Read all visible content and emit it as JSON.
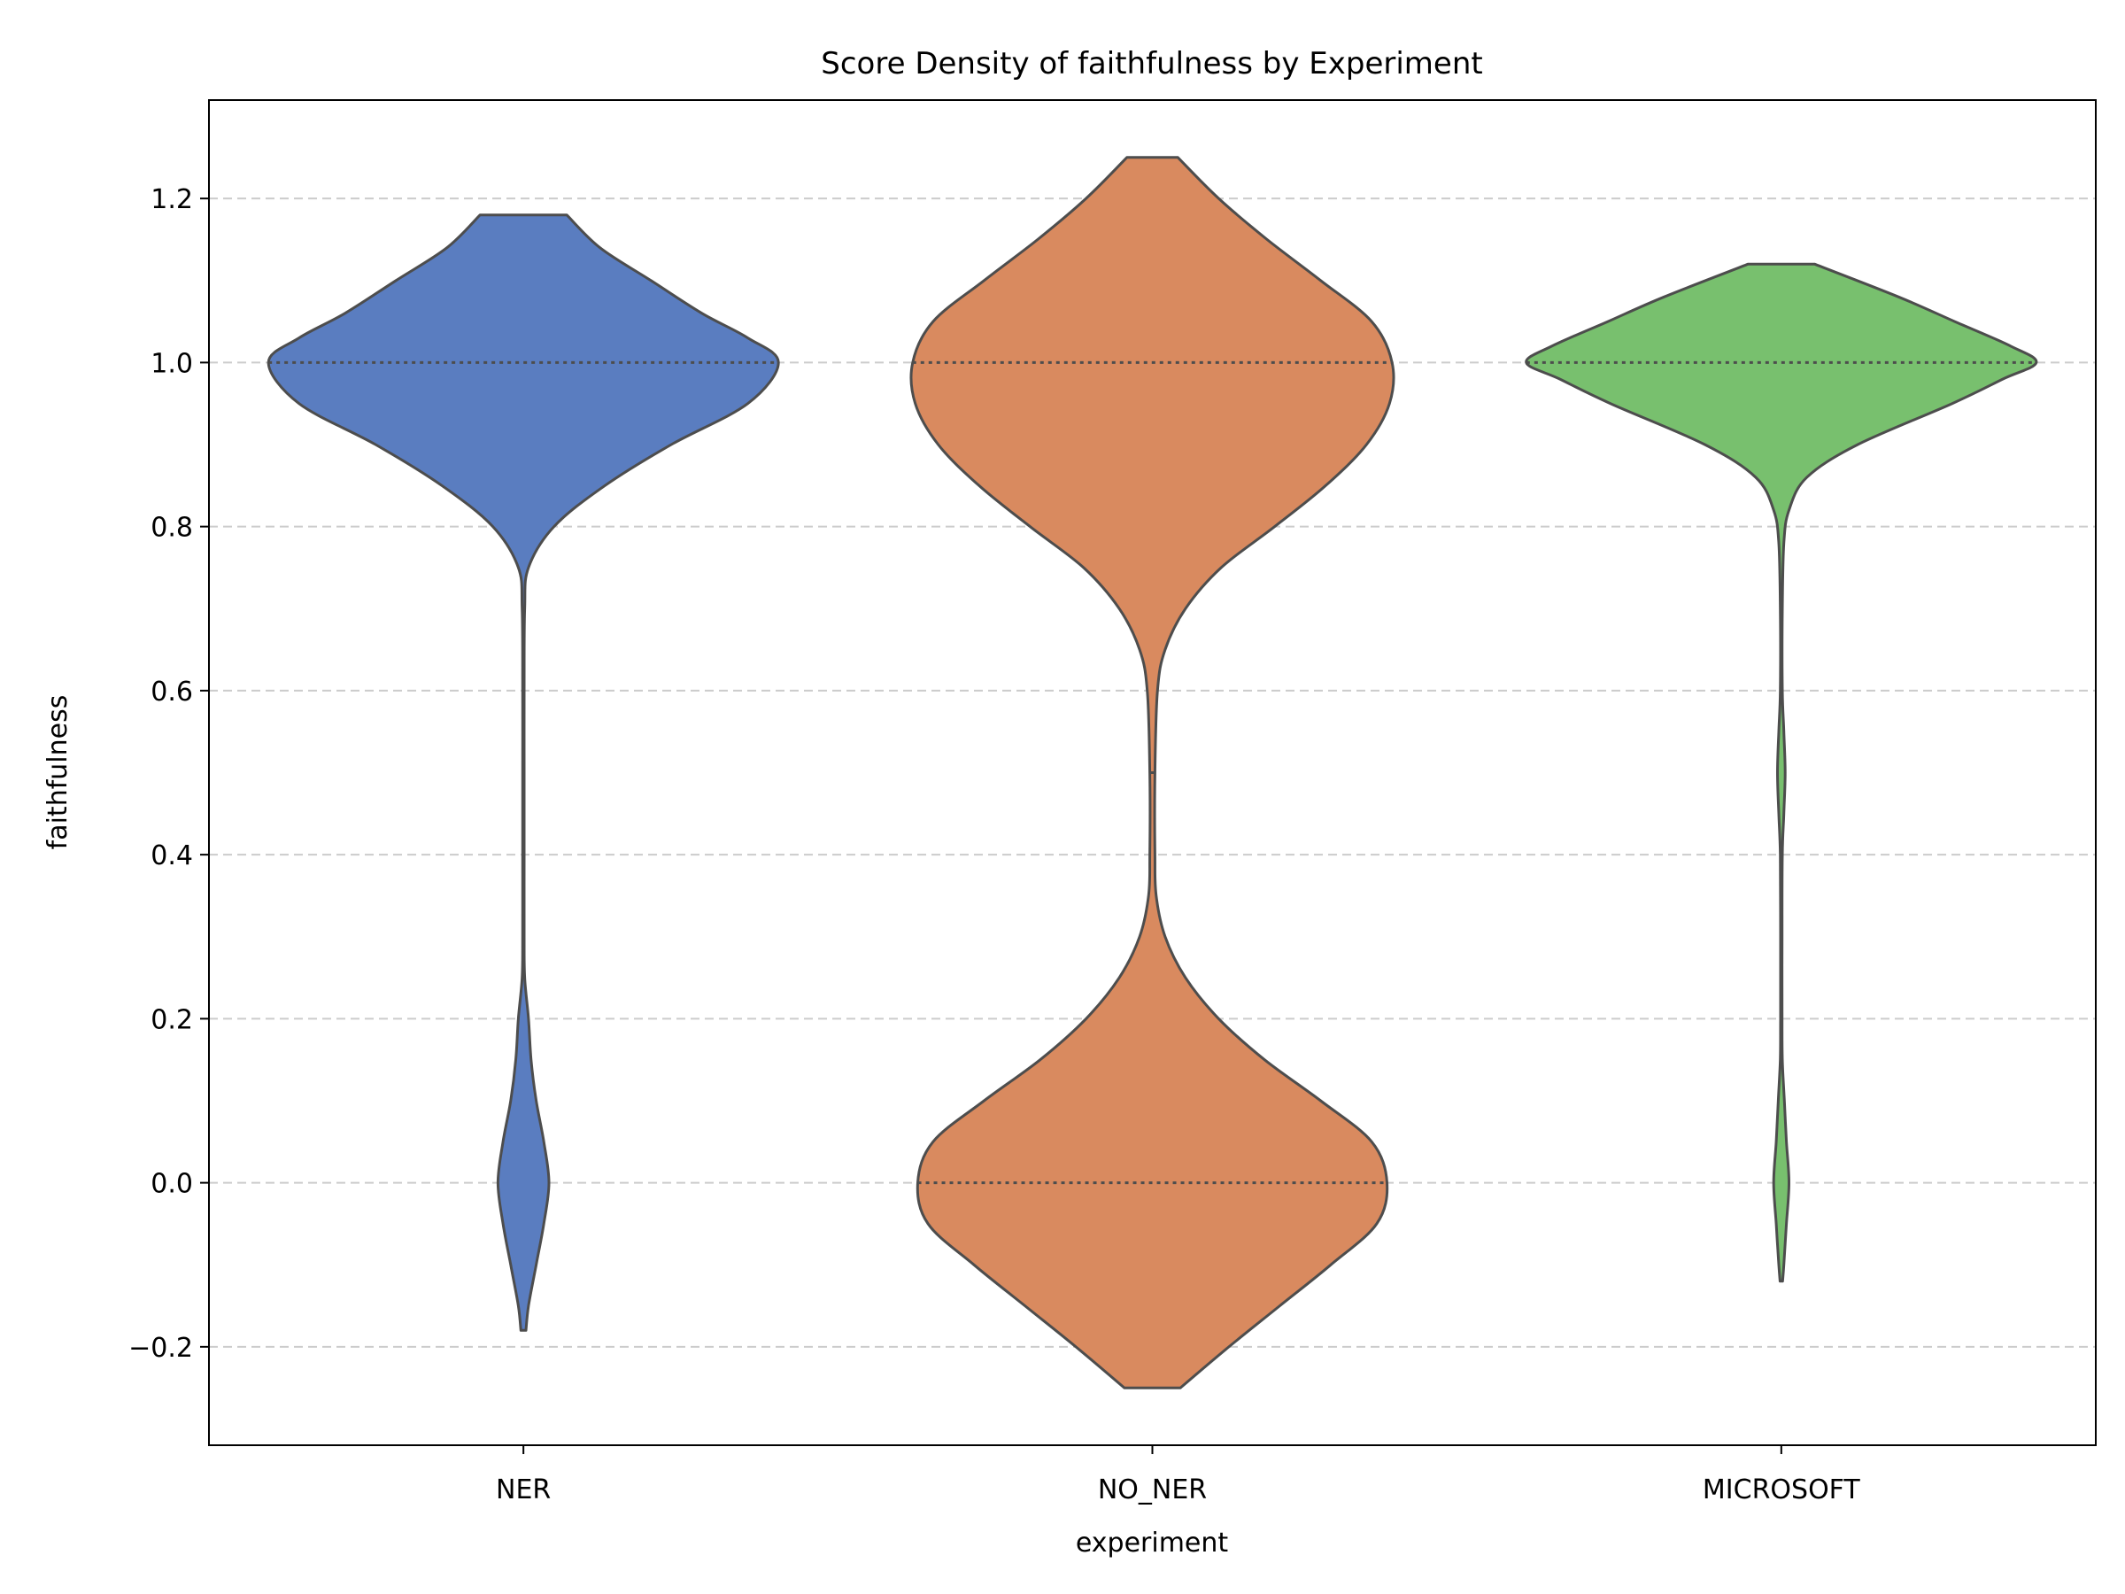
{
  "chart_data": {
    "type": "violin",
    "title": "Score Density of faithfulness by Experiment",
    "xlabel": "experiment",
    "ylabel": "faithfulness",
    "categories": [
      "NER",
      "NO_NER",
      "MICROSOFT"
    ],
    "ylim": [
      -0.32,
      1.32
    ],
    "yticks": [
      -0.2,
      0.0,
      0.2,
      0.4,
      0.6,
      0.8,
      1.0,
      1.2
    ],
    "ytick_labels": [
      "−0.2",
      "0.0",
      "0.2",
      "0.4",
      "0.6",
      "0.8",
      "1.0",
      "1.2"
    ],
    "grid": "y, dashed",
    "inner": "quartile lines",
    "series": [
      {
        "category": "NER",
        "color": "#5a7dc0",
        "range": [
          -0.18,
          1.18
        ],
        "quartiles": [
          1.0,
          1.0,
          1.0
        ],
        "density_profile": [
          [
            -0.18,
            0.01
          ],
          [
            -0.15,
            0.02
          ],
          [
            -0.1,
            0.05
          ],
          [
            -0.05,
            0.08
          ],
          [
            0.0,
            0.1
          ],
          [
            0.05,
            0.08
          ],
          [
            0.1,
            0.05
          ],
          [
            0.15,
            0.03
          ],
          [
            0.2,
            0.02
          ],
          [
            0.25,
            0.005
          ],
          [
            0.3,
            0.003
          ],
          [
            0.4,
            0.003
          ],
          [
            0.5,
            0.003
          ],
          [
            0.6,
            0.003
          ],
          [
            0.7,
            0.005
          ],
          [
            0.75,
            0.02
          ],
          [
            0.8,
            0.12
          ],
          [
            0.85,
            0.32
          ],
          [
            0.9,
            0.58
          ],
          [
            0.95,
            0.88
          ],
          [
            1.0,
            1.0
          ],
          [
            1.03,
            0.88
          ],
          [
            1.06,
            0.7
          ],
          [
            1.1,
            0.5
          ],
          [
            1.14,
            0.3
          ],
          [
            1.18,
            0.17
          ]
        ]
      },
      {
        "category": "NO_NER",
        "color": "#d98a5f",
        "range": [
          -0.25,
          1.25
        ],
        "quartiles": [
          0.0,
          0.5,
          1.0
        ],
        "density_profile": [
          [
            -0.25,
            0.11
          ],
          [
            -0.2,
            0.3
          ],
          [
            -0.15,
            0.5
          ],
          [
            -0.1,
            0.7
          ],
          [
            -0.05,
            0.88
          ],
          [
            0.0,
            0.92
          ],
          [
            0.05,
            0.86
          ],
          [
            0.1,
            0.66
          ],
          [
            0.15,
            0.44
          ],
          [
            0.2,
            0.26
          ],
          [
            0.25,
            0.13
          ],
          [
            0.3,
            0.05
          ],
          [
            0.35,
            0.015
          ],
          [
            0.4,
            0.01
          ],
          [
            0.5,
            0.01
          ],
          [
            0.6,
            0.02
          ],
          [
            0.65,
            0.05
          ],
          [
            0.7,
            0.13
          ],
          [
            0.75,
            0.27
          ],
          [
            0.8,
            0.48
          ],
          [
            0.85,
            0.68
          ],
          [
            0.9,
            0.84
          ],
          [
            0.95,
            0.93
          ],
          [
            1.0,
            0.94
          ],
          [
            1.05,
            0.86
          ],
          [
            1.1,
            0.66
          ],
          [
            1.15,
            0.45
          ],
          [
            1.2,
            0.26
          ],
          [
            1.25,
            0.1
          ]
        ]
      },
      {
        "category": "MICROSOFT",
        "color": "#78c06e",
        "range": [
          -0.12,
          1.12
        ],
        "quartiles": [
          1.0,
          1.0,
          1.0
        ],
        "density_profile": [
          [
            -0.12,
            0.005
          ],
          [
            -0.1,
            0.01
          ],
          [
            -0.05,
            0.02
          ],
          [
            0.0,
            0.03
          ],
          [
            0.05,
            0.02
          ],
          [
            0.1,
            0.012
          ],
          [
            0.15,
            0.004
          ],
          [
            0.2,
            0.003
          ],
          [
            0.3,
            0.003
          ],
          [
            0.4,
            0.004
          ],
          [
            0.45,
            0.01
          ],
          [
            0.5,
            0.015
          ],
          [
            0.55,
            0.01
          ],
          [
            0.6,
            0.004
          ],
          [
            0.7,
            0.004
          ],
          [
            0.78,
            0.01
          ],
          [
            0.82,
            0.03
          ],
          [
            0.86,
            0.1
          ],
          [
            0.9,
            0.3
          ],
          [
            0.95,
            0.67
          ],
          [
            0.98,
            0.87
          ],
          [
            1.0,
            1.0
          ],
          [
            1.02,
            0.9
          ],
          [
            1.05,
            0.68
          ],
          [
            1.08,
            0.46
          ],
          [
            1.12,
            0.13
          ]
        ]
      }
    ]
  }
}
